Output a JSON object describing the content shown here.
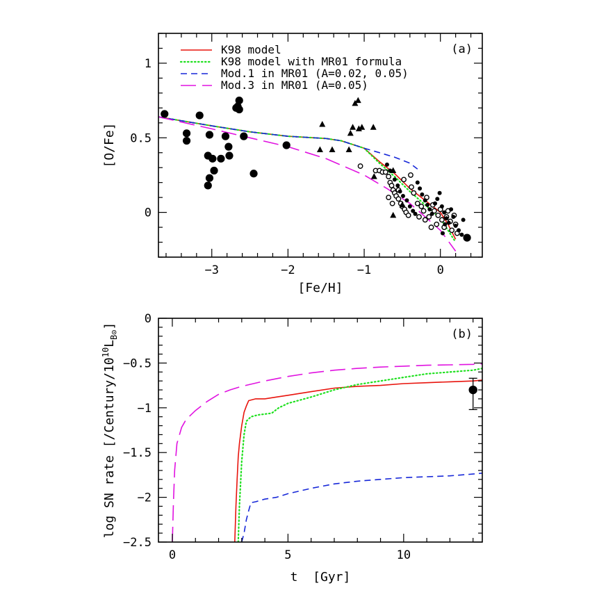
{
  "chart_data": [
    {
      "panel_label": "(a)",
      "type": "scatter",
      "xlabel": "[Fe/H]",
      "ylabel": "[O/Fe]",
      "xlim": [
        -3.7,
        0.55
      ],
      "ylim": [
        -0.3,
        1.2
      ],
      "xticks": [
        -3,
        -2,
        -1,
        0
      ],
      "xtick_labels": [
        "−3",
        "−2",
        "−1",
        "0"
      ],
      "yticks": [
        0,
        0.5,
        1
      ],
      "ytick_labels": [
        "0",
        "0.5",
        "1"
      ],
      "legend_position": "top-left",
      "colors": {
        "k98": "#e8130c",
        "mr01": "#1fe01f",
        "mod1": "#1627d8",
        "mod3": "#e012e0"
      },
      "series": [
        {
          "name": "K98 model",
          "style": "solid",
          "color": "#e8130c",
          "x": [
            -3.7,
            -3.0,
            -2.5,
            -2.0,
            -1.5,
            -1.3,
            -1.0,
            -0.8,
            -0.6,
            -0.4,
            -0.2,
            0.0,
            0.1,
            0.2
          ],
          "y": [
            0.64,
            0.58,
            0.54,
            0.51,
            0.495,
            0.48,
            0.43,
            0.34,
            0.26,
            0.16,
            0.08,
            0.0,
            -0.08,
            -0.18
          ]
        },
        {
          "name": "K98 model with MR01 formula",
          "style": "dotted",
          "color": "#1fe01f",
          "x": [
            -3.7,
            -3.0,
            -2.5,
            -2.0,
            -1.5,
            -1.3,
            -1.0,
            -0.8,
            -0.6,
            -0.4,
            -0.2,
            0.0,
            0.1,
            0.2
          ],
          "y": [
            0.64,
            0.58,
            0.54,
            0.51,
            0.495,
            0.48,
            0.43,
            0.33,
            0.24,
            0.14,
            0.05,
            -0.04,
            -0.12,
            -0.2
          ]
        },
        {
          "name": "Mod.1 in MR01 (A=0.02, 0.05)",
          "style": "dashed",
          "color": "#1627d8",
          "x": [
            -3.7,
            -3.0,
            -2.5,
            -2.0,
            -1.5,
            -1.3,
            -1.0,
            -0.8,
            -0.6,
            -0.4,
            -0.3
          ],
          "y": [
            0.64,
            0.58,
            0.54,
            0.51,
            0.495,
            0.48,
            0.43,
            0.4,
            0.37,
            0.33,
            0.29
          ]
        },
        {
          "name": "Mod.3 in MR01 (A=0.05)",
          "style": "longdash",
          "color": "#e012e0",
          "x": [
            -3.7,
            -3.0,
            -2.5,
            -2.0,
            -1.5,
            -1.0,
            -0.7,
            -0.4,
            -0.2,
            0.0,
            0.2
          ],
          "y": [
            0.64,
            0.56,
            0.5,
            0.44,
            0.36,
            0.25,
            0.16,
            0.06,
            -0.03,
            -0.12,
            -0.26
          ]
        }
      ],
      "observations": {
        "large_filled_circles": [
          [
            -3.62,
            0.66
          ],
          [
            -3.33,
            0.53
          ],
          [
            -3.33,
            0.48
          ],
          [
            -3.16,
            0.65
          ],
          [
            -3.05,
            0.38
          ],
          [
            -3.03,
            0.52
          ],
          [
            -3.03,
            0.23
          ],
          [
            -3.05,
            0.18
          ],
          [
            -2.99,
            0.36
          ],
          [
            -2.97,
            0.28
          ],
          [
            -2.88,
            0.36
          ],
          [
            -2.82,
            0.51
          ],
          [
            -2.78,
            0.44
          ],
          [
            -2.77,
            0.38
          ],
          [
            -2.68,
            0.7
          ],
          [
            -2.66,
            0.71
          ],
          [
            -2.64,
            0.69
          ],
          [
            -2.64,
            0.75
          ],
          [
            -2.58,
            0.51
          ],
          [
            -2.45,
            0.26
          ],
          [
            -2.02,
            0.45
          ],
          [
            0.35,
            -0.17
          ]
        ],
        "triangles": [
          [
            -1.58,
            0.42
          ],
          [
            -1.55,
            0.59
          ],
          [
            -1.42,
            0.42
          ],
          [
            -1.2,
            0.42
          ],
          [
            -1.18,
            0.53
          ],
          [
            -1.15,
            0.57
          ],
          [
            -1.12,
            0.73
          ],
          [
            -1.08,
            0.75
          ],
          [
            -1.07,
            0.56
          ],
          [
            -1.03,
            0.57
          ],
          [
            -0.88,
            0.57
          ],
          [
            -0.87,
            0.24
          ],
          [
            -0.62,
            0.28
          ],
          [
            -0.5,
            0.05
          ],
          [
            -0.62,
            -0.02
          ]
        ],
        "small_open_circles": [
          [
            -1.05,
            0.31
          ],
          [
            -0.85,
            0.28
          ],
          [
            -0.8,
            0.28
          ],
          [
            -0.76,
            0.27
          ],
          [
            -0.72,
            0.27
          ],
          [
            -0.68,
            0.24
          ],
          [
            -0.66,
            0.2
          ],
          [
            -0.64,
            0.18
          ],
          [
            -0.62,
            0.15
          ],
          [
            -0.6,
            0.13
          ],
          [
            -0.58,
            0.11
          ],
          [
            -0.55,
            0.09
          ],
          [
            -0.52,
            0.06
          ],
          [
            -0.5,
            0.04
          ],
          [
            -0.47,
            0.02
          ],
          [
            -0.45,
            0.0
          ],
          [
            -0.42,
            -0.02
          ],
          [
            -0.39,
            0.25
          ],
          [
            -0.38,
            0.17
          ],
          [
            -0.35,
            0.13
          ],
          [
            -0.3,
            0.06
          ],
          [
            -0.28,
            -0.03
          ],
          [
            -0.25,
            0.04
          ],
          [
            -0.22,
            0.01
          ],
          [
            -0.2,
            -0.05
          ],
          [
            -0.18,
            0.1
          ],
          [
            -0.15,
            -0.03
          ],
          [
            -0.12,
            -0.1
          ],
          [
            -0.1,
            0.05
          ],
          [
            -0.08,
            0.01
          ],
          [
            -0.05,
            -0.08
          ],
          [
            -0.03,
            -0.02
          ],
          [
            0.0,
            0.02
          ],
          [
            0.02,
            -0.05
          ],
          [
            0.05,
            -0.1
          ],
          [
            0.08,
            -0.03
          ],
          [
            0.1,
            0.01
          ],
          [
            0.13,
            -0.06
          ],
          [
            0.15,
            -0.12
          ],
          [
            0.18,
            -0.02
          ],
          [
            0.2,
            -0.08
          ],
          [
            0.22,
            -0.14
          ],
          [
            -0.68,
            0.1
          ],
          [
            -0.63,
            0.06
          ],
          [
            -0.55,
            0.15
          ],
          [
            -0.48,
            0.22
          ]
        ],
        "small_filled_circles": [
          [
            -0.7,
            0.32
          ],
          [
            -0.66,
            0.28
          ],
          [
            -0.6,
            0.22
          ],
          [
            -0.56,
            0.18
          ],
          [
            -0.53,
            0.14
          ],
          [
            -0.49,
            0.11
          ],
          [
            -0.44,
            0.08
          ],
          [
            -0.4,
            0.04
          ],
          [
            -0.36,
            0.01
          ],
          [
            -0.33,
            -0.01
          ],
          [
            -0.3,
            0.2
          ],
          [
            -0.27,
            0.16
          ],
          [
            -0.24,
            0.12
          ],
          [
            -0.2,
            0.08
          ],
          [
            -0.17,
            0.05
          ],
          [
            -0.14,
            0.02
          ],
          [
            -0.11,
            -0.01
          ],
          [
            -0.07,
            0.06
          ],
          [
            -0.04,
            0.09
          ],
          [
            -0.01,
            0.13
          ],
          [
            0.02,
            0.04
          ],
          [
            0.05,
            0.0
          ],
          [
            0.08,
            -0.04
          ],
          [
            0.11,
            -0.07
          ],
          [
            0.14,
            0.02
          ],
          [
            0.17,
            -0.03
          ],
          [
            0.2,
            -0.09
          ],
          [
            0.24,
            -0.12
          ],
          [
            0.28,
            -0.15
          ],
          [
            0.3,
            -0.05
          ],
          [
            0.03,
            -0.14
          ],
          [
            0.06,
            -0.08
          ]
        ]
      }
    },
    {
      "panel_label": "(b)",
      "type": "line",
      "xlabel": "t  [Gyr]",
      "ylabel": "log SN rate [/Century/10",
      "ylabel_sup": "10",
      "ylabel_tail": "L",
      "ylabel_sub": "B⊙",
      "ylabel_close": "]",
      "xlim": [
        -0.6,
        13.4
      ],
      "ylim": [
        -2.5,
        0
      ],
      "xticks": [
        0,
        5,
        10
      ],
      "xtick_labels": [
        "0",
        "5",
        "10"
      ],
      "yticks": [
        0,
        -0.5,
        -1,
        -1.5,
        -2,
        -2.5
      ],
      "ytick_labels": [
        "0",
        "−0.5",
        "−1",
        "−1.5",
        "−2",
        "−2.5"
      ],
      "series": [
        {
          "name": "K98 model",
          "style": "solid",
          "color": "#e8130c",
          "x": [
            2.7,
            2.75,
            2.8,
            2.85,
            2.9,
            3.0,
            3.1,
            3.2,
            3.3,
            3.6,
            4.0,
            4.5,
            5.0,
            6.0,
            7.0,
            8.0,
            9.0,
            10.0,
            11.0,
            12.0,
            13.0,
            13.4
          ],
          "y": [
            -2.5,
            -2.1,
            -1.8,
            -1.55,
            -1.4,
            -1.2,
            -1.05,
            -0.98,
            -0.92,
            -0.9,
            -0.9,
            -0.88,
            -0.86,
            -0.82,
            -0.78,
            -0.76,
            -0.75,
            -0.73,
            -0.72,
            -0.71,
            -0.7,
            -0.69
          ]
        },
        {
          "name": "K98 model with MR01 formula",
          "style": "dotted",
          "color": "#1fe01f",
          "x": [
            2.85,
            2.9,
            3.0,
            3.1,
            3.2,
            3.4,
            3.7,
            4.0,
            4.3,
            4.6,
            5.0,
            6.0,
            7.0,
            8.0,
            9.0,
            10.0,
            11.0,
            12.0,
            13.0,
            13.4
          ],
          "y": [
            -2.5,
            -2.1,
            -1.6,
            -1.3,
            -1.15,
            -1.1,
            -1.08,
            -1.07,
            -1.06,
            -1.0,
            -0.95,
            -0.88,
            -0.8,
            -0.74,
            -0.7,
            -0.66,
            -0.62,
            -0.6,
            -0.58,
            -0.56
          ]
        },
        {
          "name": "Mod.1 in MR01 (A=0.02, 0.05)",
          "style": "dashed",
          "color": "#1627d8",
          "x": [
            3.0,
            3.1,
            3.2,
            3.3,
            3.4,
            3.6,
            4.0,
            4.5,
            5.0,
            6.0,
            7.0,
            8.0,
            9.0,
            10.0,
            11.0,
            12.0,
            13.0,
            13.4
          ],
          "y": [
            -2.5,
            -2.4,
            -2.25,
            -2.15,
            -2.06,
            -2.05,
            -2.02,
            -2.0,
            -1.96,
            -1.9,
            -1.85,
            -1.82,
            -1.8,
            -1.78,
            -1.77,
            -1.76,
            -1.74,
            -1.73
          ]
        },
        {
          "name": "Mod.3 in MR01 (A=0.05)",
          "style": "longdash",
          "color": "#e012e0",
          "x": [
            0.0,
            0.05,
            0.1,
            0.2,
            0.4,
            0.6,
            1.0,
            1.5,
            2.0,
            2.5,
            3.0,
            4.0,
            5.0,
            6.0,
            7.0,
            8.0,
            9.0,
            10.0,
            11.0,
            12.0,
            13.0,
            13.4
          ],
          "y": [
            -2.5,
            -2.05,
            -1.7,
            -1.4,
            -1.22,
            -1.13,
            -1.03,
            -0.93,
            -0.85,
            -0.8,
            -0.76,
            -0.7,
            -0.65,
            -0.61,
            -0.58,
            -0.56,
            -0.545,
            -0.535,
            -0.525,
            -0.52,
            -0.515,
            -0.51
          ]
        }
      ],
      "observation": {
        "x": 13.0,
        "y": -0.8,
        "err_low": -1.02,
        "err_high": -0.67
      }
    }
  ],
  "legend": [
    {
      "label": "K98 model",
      "style": "solid",
      "color": "#e8130c"
    },
    {
      "label": "K98 model with MR01 formula",
      "style": "dotted",
      "color": "#1fe01f"
    },
    {
      "label": "Mod.1 in MR01 (A=0.02, 0.05)",
      "style": "dashed",
      "color": "#1627d8"
    },
    {
      "label": "Mod.3 in MR01 (A=0.05)",
      "style": "longdash",
      "color": "#e012e0"
    }
  ]
}
